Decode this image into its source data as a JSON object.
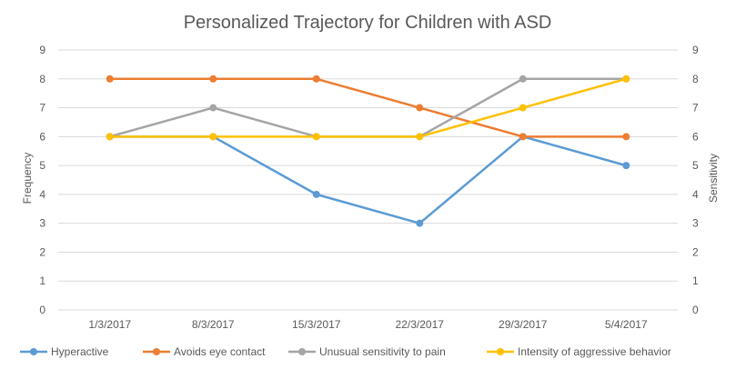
{
  "chart_data": {
    "type": "line",
    "title": "Personalized Trajectory for Children with ASD",
    "xlabel": "",
    "ylabel": "Frequency",
    "y2label": "Sensitivity",
    "categories": [
      "1/3/2017",
      "8/3/2017",
      "15/3/2017",
      "22/3/2017",
      "29/3/2017",
      "5/4/2017"
    ],
    "ylim": [
      0,
      9
    ],
    "y2lim": [
      0,
      9
    ],
    "yticks": [
      "0",
      "1",
      "2",
      "3",
      "4",
      "5",
      "6",
      "7",
      "8",
      "9"
    ],
    "grid": true,
    "legend_position": "bottom",
    "series": [
      {
        "name": "Hyperactive",
        "color": "#5B9BD5",
        "values": [
          6,
          6,
          4,
          3,
          6,
          5
        ]
      },
      {
        "name": "Avoids eye contact",
        "color": "#ED7D31",
        "values": [
          8,
          8,
          8,
          7,
          6,
          6
        ]
      },
      {
        "name": "Unusual sensitivity to pain",
        "color": "#A5A5A5",
        "values": [
          6,
          7,
          6,
          6,
          8,
          8
        ]
      },
      {
        "name": "Intensity of aggressive behavior",
        "color": "#FFC000",
        "values": [
          6,
          6,
          6,
          6,
          7,
          8
        ]
      }
    ]
  }
}
